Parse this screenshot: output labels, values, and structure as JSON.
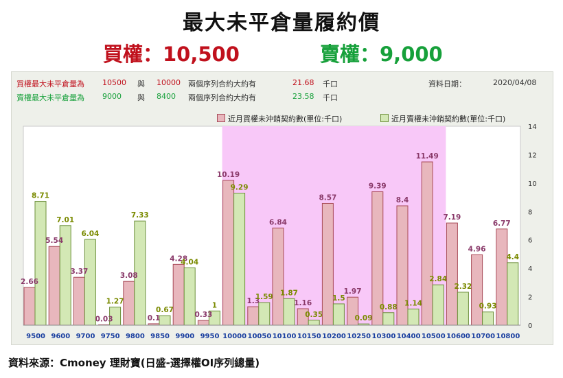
{
  "header": {
    "title": "最大未平倉量履約價",
    "call_line": "買權：10,500",
    "put_line": "賣權：9,000"
  },
  "info": {
    "call_row": {
      "label": "買權最大未平倉量為",
      "v1": "10500",
      "conj": "與",
      "v2": "10000",
      "desc": "兩個序列合約大約有",
      "amount": "21.68",
      "unit": "千口"
    },
    "put_row": {
      "label": "賣權最大未平倉量為",
      "v1": "9000",
      "conj": "與",
      "v2": "8400",
      "desc": "兩個序列合約大約有",
      "amount": "23.58",
      "unit": "千口"
    },
    "date_label": "資料日期：",
    "date_value": "2020/04/08"
  },
  "legend": {
    "call": "近月買權未沖銷契約數(單位:千口)",
    "put": "近月賣權未沖銷契約數(單位:千口)"
  },
  "colors": {
    "call_fill": "#e8b7bd",
    "call_stroke": "#a84a58",
    "put_fill": "#d3e8b5",
    "put_stroke": "#6c8f3a",
    "highlight": "#f8c8f8",
    "call_label": "#8a3a6a",
    "put_label": "#7a8a00",
    "xtick": "#1a3fa0"
  },
  "chart_data": {
    "type": "bar",
    "categories": [
      "9500",
      "9600",
      "9700",
      "9750",
      "9800",
      "9850",
      "9900",
      "9950",
      "10000",
      "10050",
      "10100",
      "10150",
      "10200",
      "10250",
      "10300",
      "10400",
      "10500",
      "10600",
      "10700",
      "10800"
    ],
    "series": [
      {
        "name": "近月買權未沖銷契約數(單位:千口)",
        "values": [
          2.66,
          5.54,
          3.37,
          0.03,
          3.08,
          0.1,
          4.28,
          0.33,
          10.19,
          1.3,
          6.84,
          1.16,
          8.57,
          1.97,
          9.39,
          8.4,
          11.49,
          7.19,
          4.96,
          6.77
        ]
      },
      {
        "name": "近月賣權未沖銷契約數(單位:千口)",
        "values": [
          8.71,
          7.01,
          6.04,
          1.27,
          7.33,
          0.67,
          4.04,
          1,
          9.29,
          1.59,
          1.87,
          0.35,
          1.5,
          0.09,
          0.88,
          1.14,
          2.84,
          2.32,
          0.93,
          4.4
        ]
      }
    ],
    "call_labels": [
      "2.66",
      "5.54",
      "3.37",
      "0.03",
      "3.08",
      "0.1",
      "4.28",
      "0.33",
      "10.19",
      "1.3",
      "6.84",
      "1.16",
      "8.57",
      "1.97",
      "9.39",
      "8.4",
      "11.49",
      "7.19",
      "4.96",
      "6.77"
    ],
    "put_labels": [
      "8.71",
      "7.01",
      "6.04",
      "1.27",
      "7.33",
      "0.67",
      "4.04",
      "1",
      "9.29",
      "1.59",
      "1.87",
      "0.35",
      "1.5",
      "0.09",
      "0.88",
      "1.14",
      "2.84",
      "2.32",
      "0.93",
      "4.4"
    ],
    "y_ticks": [
      "0",
      "2",
      "4",
      "6",
      "8",
      "10",
      "12",
      "14"
    ],
    "ylim": [
      0,
      14
    ],
    "y_axis_side": "right",
    "highlight_range": [
      "10000",
      "10500"
    ],
    "grid": false
  },
  "footer": {
    "source": "資料來源：Cmoney 理財寶(日盛-選擇權OI序列總量)"
  }
}
